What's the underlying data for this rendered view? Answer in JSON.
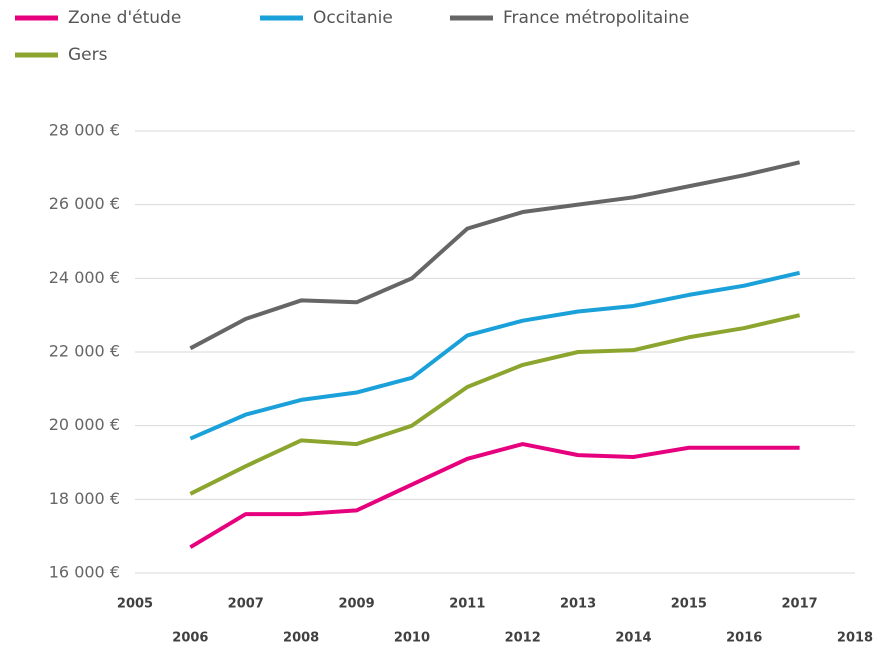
{
  "chart_data": {
    "type": "line",
    "x": [
      2006,
      2007,
      2008,
      2009,
      2010,
      2011,
      2012,
      2013,
      2014,
      2015,
      2016,
      2017
    ],
    "series": [
      {
        "name": "Zone d'étude",
        "color": "#e6007e",
        "values": [
          16700,
          17600,
          17600,
          17700,
          18400,
          19100,
          19500,
          19200,
          19150,
          19400,
          19400,
          19400
        ]
      },
      {
        "name": "Occitanie",
        "color": "#1ba1d9",
        "values": [
          19650,
          20300,
          20700,
          20900,
          21300,
          22450,
          22850,
          23100,
          23250,
          23550,
          23800,
          24150
        ]
      },
      {
        "name": "France métropolitaine",
        "color": "#666666",
        "values": [
          22100,
          22900,
          23400,
          23350,
          24000,
          25350,
          25800,
          26000,
          26200,
          26500,
          26800,
          27150
        ]
      },
      {
        "name": "Gers",
        "color": "#8ca52f",
        "values": [
          18150,
          18900,
          19600,
          19500,
          20000,
          21050,
          21650,
          22000,
          22050,
          22400,
          22650,
          23000
        ]
      }
    ],
    "xlim": [
      2005,
      2018
    ],
    "xticks": [
      2005,
      2006,
      2007,
      2008,
      2009,
      2010,
      2011,
      2012,
      2013,
      2014,
      2015,
      2016,
      2017,
      2018
    ],
    "ylim": [
      16000,
      28000
    ],
    "yticks": [
      {
        "value": 16000,
        "label": "16 000 €"
      },
      {
        "value": 18000,
        "label": "18 000 €"
      },
      {
        "value": 20000,
        "label": "20 000 €"
      },
      {
        "value": 22000,
        "label": "22 000 €"
      },
      {
        "value": 24000,
        "label": "24 000 €"
      },
      {
        "value": 26000,
        "label": "26 000 €"
      },
      {
        "value": 28000,
        "label": "28 000 €"
      }
    ],
    "grid": true
  }
}
